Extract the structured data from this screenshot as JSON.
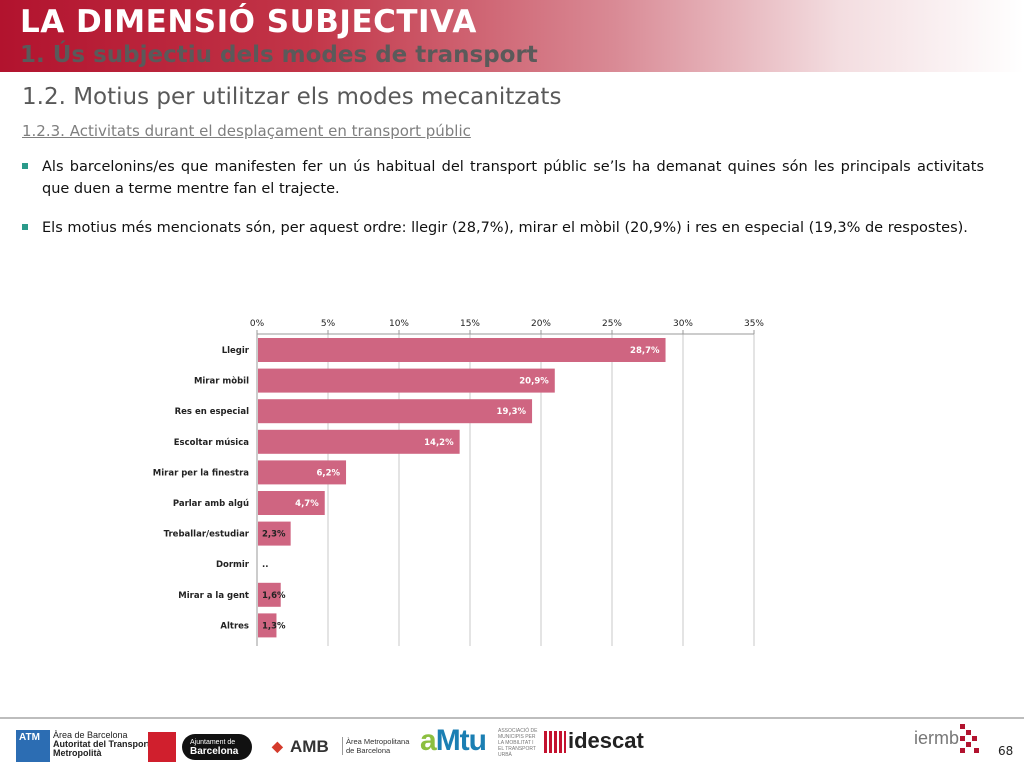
{
  "header": {
    "title": "LA DIMENSIÓ SUBJECTIVA",
    "subtitle": "1. Ús subjectiu dels modes de transport"
  },
  "section": "1.2. Motius per utilitzar els modes mecanitzats",
  "subsection": "1.2.3. Activitats durant el desplaçament en transport públic",
  "bullets": [
    "Als barcelonins/es que manifesten fer un ús habitual del transport públic se’ls ha demanat quines són les principals activitats que duen a terme mentre fan el trajecte.",
    "Els motius més mencionats són, per aquest ordre: llegir (28,7%), mirar el mòbil (20,9%) i res en especial (19,3% de respostes)."
  ],
  "chart_data": {
    "type": "bar",
    "orientation": "horizontal",
    "categories": [
      "Llegir",
      "Mirar mòbil",
      "Res en especial",
      "Escoltar música",
      "Mirar per la finestra",
      "Parlar amb algú",
      "Treballar/estudiar",
      "Dormir",
      "Mirar a la gent",
      "Altres"
    ],
    "values": [
      28.7,
      20.9,
      19.3,
      14.2,
      6.2,
      4.7,
      2.3,
      null,
      1.6,
      1.3
    ],
    "data_labels": [
      "28,7%",
      "20,9%",
      "19,3%",
      "14,2%",
      "6,2%",
      "4,7%",
      "2,3%",
      "..",
      "1,6%",
      "1,3%"
    ],
    "x_ticks": [
      "0%",
      "5%",
      "10%",
      "15%",
      "20%",
      "25%",
      "30%",
      "35%"
    ],
    "xlim": [
      0,
      35
    ],
    "axis_position": "top",
    "grid": true,
    "bar_color": "#cf6581"
  },
  "footer": {
    "atm_box": "ATM",
    "atm_text": [
      "Àrea de Barcelona",
      "Autoritat del Transport",
      "Metropolità"
    ],
    "ajuntament_text": [
      "Ajuntament de",
      "Barcelona"
    ],
    "amb_name": "AMB",
    "amb_text": [
      "Àrea Metropolitana",
      "de Barcelona"
    ],
    "amtu_name_a": "a",
    "amtu_name_rest": "Mtu",
    "amtu_text": "ASSOCIACIÓ DE MUNICIPIS PER LA MOBILITAT I EL TRANSPORT URBÀ",
    "idescat_name": "idescat",
    "iermb_name": "iermb",
    "page_number": "68"
  }
}
